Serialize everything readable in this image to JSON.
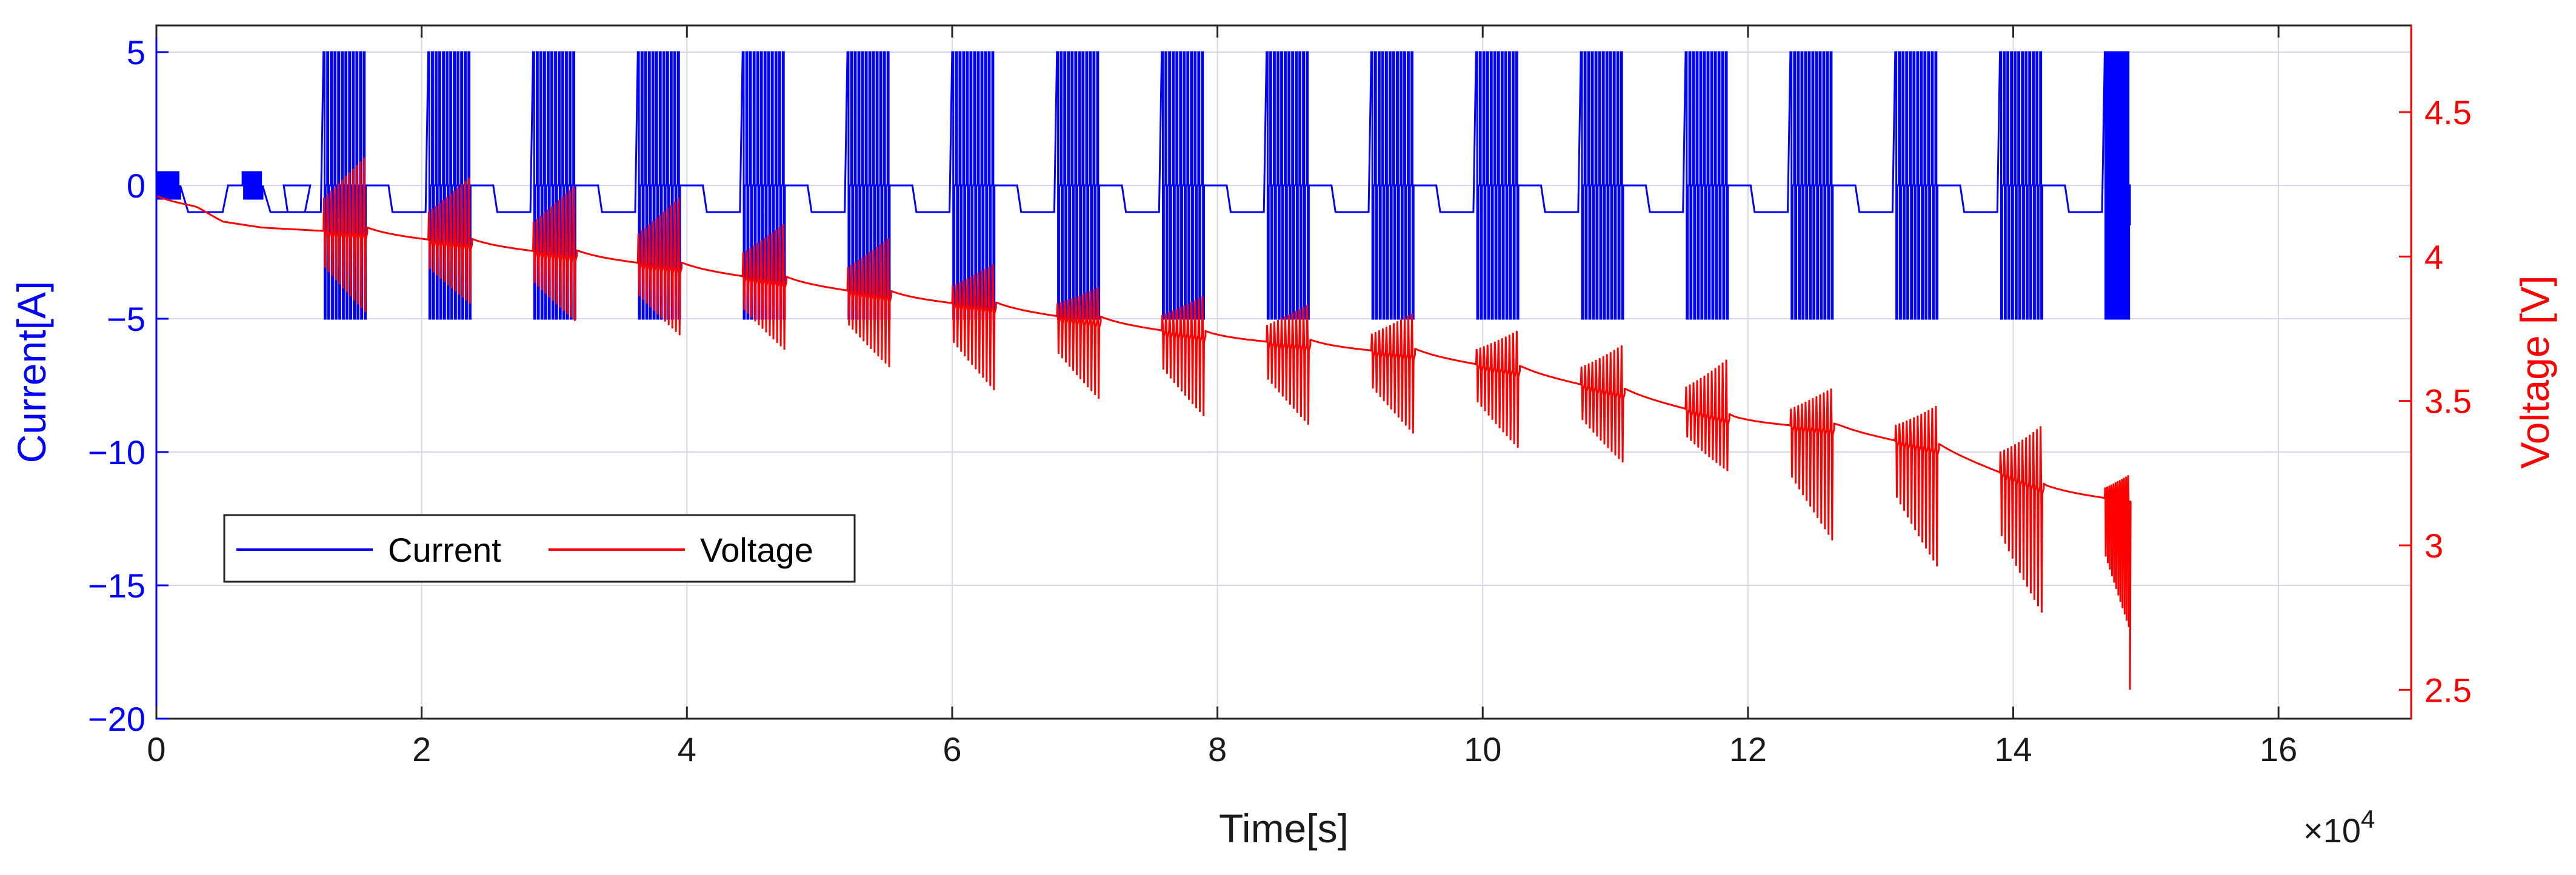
{
  "chart_data": {
    "type": "line",
    "title": "",
    "xlabel": "Time[s]",
    "x_multiplier": "×10",
    "x_multiplier_exp": "4",
    "xlim": [
      0,
      17
    ],
    "xticks": [
      0,
      2,
      4,
      6,
      8,
      10,
      12,
      14,
      16
    ],
    "y_left": {
      "label": "Current[A]",
      "lim": [
        -20,
        6
      ],
      "ticks": [
        -20,
        -15,
        -10,
        -5,
        0,
        5
      ],
      "color": "#0000ff"
    },
    "y_right": {
      "label": "Voltage [V]",
      "lim": [
        2.4,
        4.8
      ],
      "ticks": [
        2.5,
        3,
        3.5,
        4,
        4.5
      ],
      "color": "#ff0000"
    },
    "grid": true,
    "legend": {
      "location": "lower-left",
      "entries": [
        "Current",
        "Voltage"
      ]
    },
    "series": [
      {
        "name": "Current",
        "axis": "left",
        "color": "#0000ff",
        "pulse_amplitude": 5,
        "rest_level": -1,
        "pulse_blocks": [
          {
            "start": 1.26,
            "end": 1.59
          },
          {
            "start": 2.05,
            "end": 2.38
          },
          {
            "start": 2.84,
            "end": 3.17
          },
          {
            "start": 3.63,
            "end": 3.96
          },
          {
            "start": 4.42,
            "end": 4.75
          },
          {
            "start": 5.21,
            "end": 5.54
          },
          {
            "start": 6.0,
            "end": 6.33
          },
          {
            "start": 6.79,
            "end": 7.12
          },
          {
            "start": 7.58,
            "end": 7.91
          },
          {
            "start": 8.37,
            "end": 8.7
          },
          {
            "start": 9.16,
            "end": 9.49
          },
          {
            "start": 9.95,
            "end": 10.28
          },
          {
            "start": 10.74,
            "end": 11.07
          },
          {
            "start": 11.53,
            "end": 11.86
          },
          {
            "start": 12.32,
            "end": 12.65
          },
          {
            "start": 13.11,
            "end": 13.44
          },
          {
            "start": 13.9,
            "end": 14.23
          },
          {
            "start": 14.69,
            "end": 14.88
          }
        ],
        "small_pulses": [
          {
            "start": 0.0,
            "end": 0.18
          },
          {
            "start": 0.65,
            "end": 0.8
          }
        ]
      },
      {
        "name": "Voltage",
        "axis": "right",
        "color": "#ff0000",
        "rest_levels": [
          {
            "x": 0.0,
            "y": 4.19
          },
          {
            "x": 0.3,
            "y": 4.17
          },
          {
            "x": 0.5,
            "y": 4.12
          },
          {
            "x": 0.8,
            "y": 4.1
          },
          {
            "x": 1.6,
            "y": 4.08
          },
          {
            "x": 2.4,
            "y": 4.04
          },
          {
            "x": 3.2,
            "y": 4.0
          },
          {
            "x": 3.95,
            "y": 3.96
          },
          {
            "x": 4.75,
            "y": 3.91
          },
          {
            "x": 5.55,
            "y": 3.86
          },
          {
            "x": 6.35,
            "y": 3.82
          },
          {
            "x": 7.15,
            "y": 3.77
          },
          {
            "x": 7.95,
            "y": 3.72
          },
          {
            "x": 8.75,
            "y": 3.69
          },
          {
            "x": 9.5,
            "y": 3.66
          },
          {
            "x": 10.3,
            "y": 3.6
          },
          {
            "x": 11.1,
            "y": 3.52
          },
          {
            "x": 11.9,
            "y": 3.43
          },
          {
            "x": 12.7,
            "y": 3.4
          },
          {
            "x": 13.45,
            "y": 3.33
          },
          {
            "x": 14.25,
            "y": 3.19
          },
          {
            "x": 14.9,
            "y": 3.15
          }
        ],
        "spike_high": [
          4.34,
          4.27,
          4.24,
          4.2,
          4.11,
          4.06,
          3.97,
          3.89,
          3.86,
          3.83,
          3.8,
          3.74,
          3.69,
          3.64,
          3.54,
          3.48,
          3.41,
          3.24
        ],
        "spike_low": [
          3.81,
          3.84,
          3.78,
          3.73,
          3.68,
          3.62,
          3.54,
          3.51,
          3.45,
          3.42,
          3.39,
          3.34,
          3.29,
          3.26,
          3.02,
          2.93,
          2.77,
          2.72
        ],
        "end_point": {
          "x": 14.88,
          "y": 2.5
        }
      }
    ]
  }
}
